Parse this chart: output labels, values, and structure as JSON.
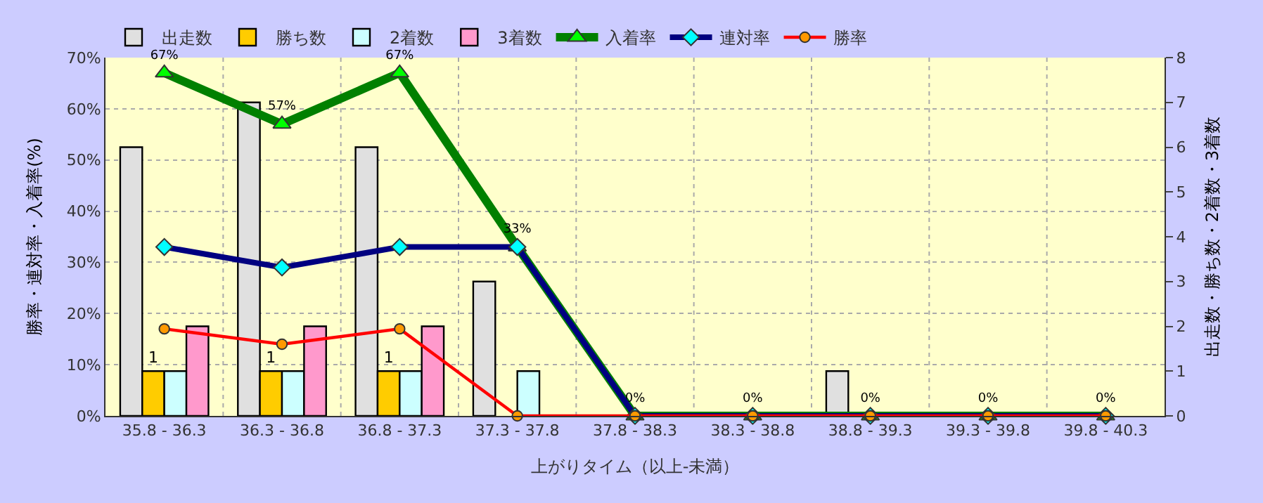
{
  "chart_data": {
    "type": "bar",
    "xlabel": "上がりタイム（以上-未満）",
    "ylabel": "勝率・連対率・入着率(%)",
    "y2label": "出走数・勝ち数・2着数・3着数",
    "categories": [
      "35.8 - 36.3",
      "36.3 - 36.8",
      "36.8 - 37.3",
      "37.3 - 37.8",
      "37.8 - 38.3",
      "38.3 - 38.8",
      "38.8 - 39.3",
      "39.3 - 39.8",
      "39.8 - 40.3"
    ],
    "series": [
      {
        "name": "出走数",
        "axis": "y2",
        "color": "#e0e0e0",
        "values": [
          6,
          7,
          6,
          3,
          0,
          0,
          1,
          0,
          0
        ]
      },
      {
        "name": "勝ち数",
        "axis": "y2",
        "color": "#ffcc00",
        "values": [
          1,
          1,
          1,
          0,
          0,
          0,
          0,
          0,
          0
        ],
        "value_labels": [
          "1",
          "1",
          "1",
          null,
          null,
          null,
          null,
          null,
          null
        ]
      },
      {
        "name": "2着数",
        "axis": "y2",
        "color": "#ccffff",
        "values": [
          1,
          1,
          1,
          1,
          0,
          0,
          0,
          0,
          0
        ]
      },
      {
        "name": "3着数",
        "axis": "y2",
        "color": "#ff99cc",
        "values": [
          2,
          2,
          2,
          0,
          0,
          0,
          0,
          0,
          0
        ]
      },
      {
        "name": "入着率",
        "type": "line",
        "marker": "triangle",
        "color": "#008000",
        "values": [
          67,
          57,
          67,
          33,
          0,
          0,
          0,
          0,
          0
        ],
        "value_labels": [
          "67%",
          "57%",
          "67%",
          "33%",
          "0%",
          "0%",
          "0%",
          "0%",
          "0%"
        ]
      },
      {
        "name": "連対率",
        "type": "line",
        "marker": "diamond",
        "color": "#000080",
        "values": [
          33,
          29,
          33,
          33,
          0,
          0,
          0,
          0,
          0
        ]
      },
      {
        "name": "勝率",
        "type": "line",
        "marker": "circle",
        "color": "#ff0000",
        "values": [
          17,
          14,
          17,
          0,
          0,
          0,
          0,
          0,
          0
        ]
      }
    ],
    "ylim": [
      0,
      70
    ],
    "yticks": [
      {
        "value": 0,
        "label": "0%"
      },
      {
        "value": 10,
        "label": "10%"
      },
      {
        "value": 20,
        "label": "20%"
      },
      {
        "value": 30,
        "label": "30%"
      },
      {
        "value": 40,
        "label": "40%"
      },
      {
        "value": 50,
        "label": "50%"
      },
      {
        "value": 60,
        "label": "60%"
      },
      {
        "value": 70,
        "label": "70%"
      }
    ],
    "y2lim": [
      0,
      8
    ],
    "y2ticks": [
      0,
      1,
      2,
      3,
      4,
      5,
      6,
      7,
      8
    ],
    "grid": true,
    "legend": "top left"
  }
}
